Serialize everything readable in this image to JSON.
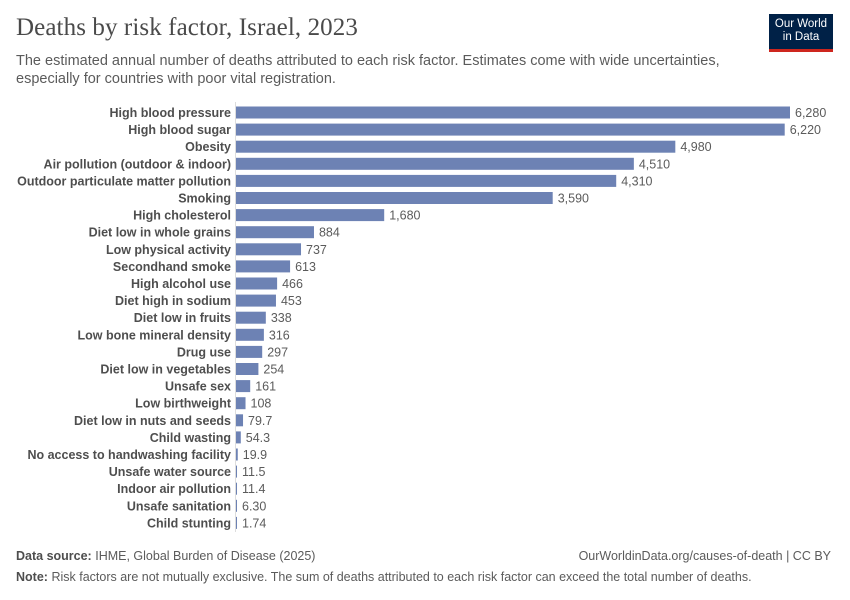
{
  "header": {
    "title": "Deaths by risk factor, Israel, 2023",
    "subtitle": "The estimated annual number of deaths attributed to each risk factor. Estimates come with wide uncertainties, especially for countries with poor vital registration.",
    "logo_line1": "Our World",
    "logo_line2": "in Data",
    "logo_bg": "#002147",
    "logo_accent": "#ce261e"
  },
  "footer": {
    "source_label": "Data source:",
    "source_text": "IHME, Global Burden of Disease (2025)",
    "url_text": "OurWorldinData.org/causes-of-death | CC BY",
    "note_label": "Note:",
    "note_text": "Risk factors are not mutually exclusive. The sum of deaths attributed to each risk factor can exceed the total number of deaths."
  },
  "chart_data": {
    "type": "bar",
    "orientation": "horizontal",
    "bar_color": "#6d82b4",
    "grid": false,
    "categories": [
      "High blood pressure",
      "High blood sugar",
      "Obesity",
      "Air pollution (outdoor & indoor)",
      "Outdoor particulate matter pollution",
      "Smoking",
      "High cholesterol",
      "Diet low in whole grains",
      "Low physical activity",
      "Secondhand smoke",
      "High alcohol use",
      "Diet high in sodium",
      "Diet low in fruits",
      "Low bone mineral density",
      "Drug use",
      "Diet low in vegetables",
      "Unsafe sex",
      "Low birthweight",
      "Diet low in nuts and seeds",
      "Child wasting",
      "No access to handwashing facility",
      "Unsafe water source",
      "Indoor air pollution",
      "Unsafe sanitation",
      "Child stunting"
    ],
    "values": [
      6280,
      6220,
      4980,
      4510,
      4310,
      3590,
      1680,
      884,
      737,
      613,
      466,
      453,
      338,
      316,
      297,
      254,
      161,
      108,
      79.7,
      54.3,
      19.9,
      11.5,
      11.4,
      6.3,
      1.74
    ],
    "value_labels": [
      "6,280",
      "6,220",
      "4,980",
      "4,510",
      "4,310",
      "3,590",
      "1,680",
      "884",
      "737",
      "613",
      "466",
      "453",
      "338",
      "316",
      "297",
      "254",
      "161",
      "108",
      "79.7",
      "54.3",
      "19.9",
      "11.5",
      "11.4",
      "6.30",
      "1.74"
    ]
  }
}
